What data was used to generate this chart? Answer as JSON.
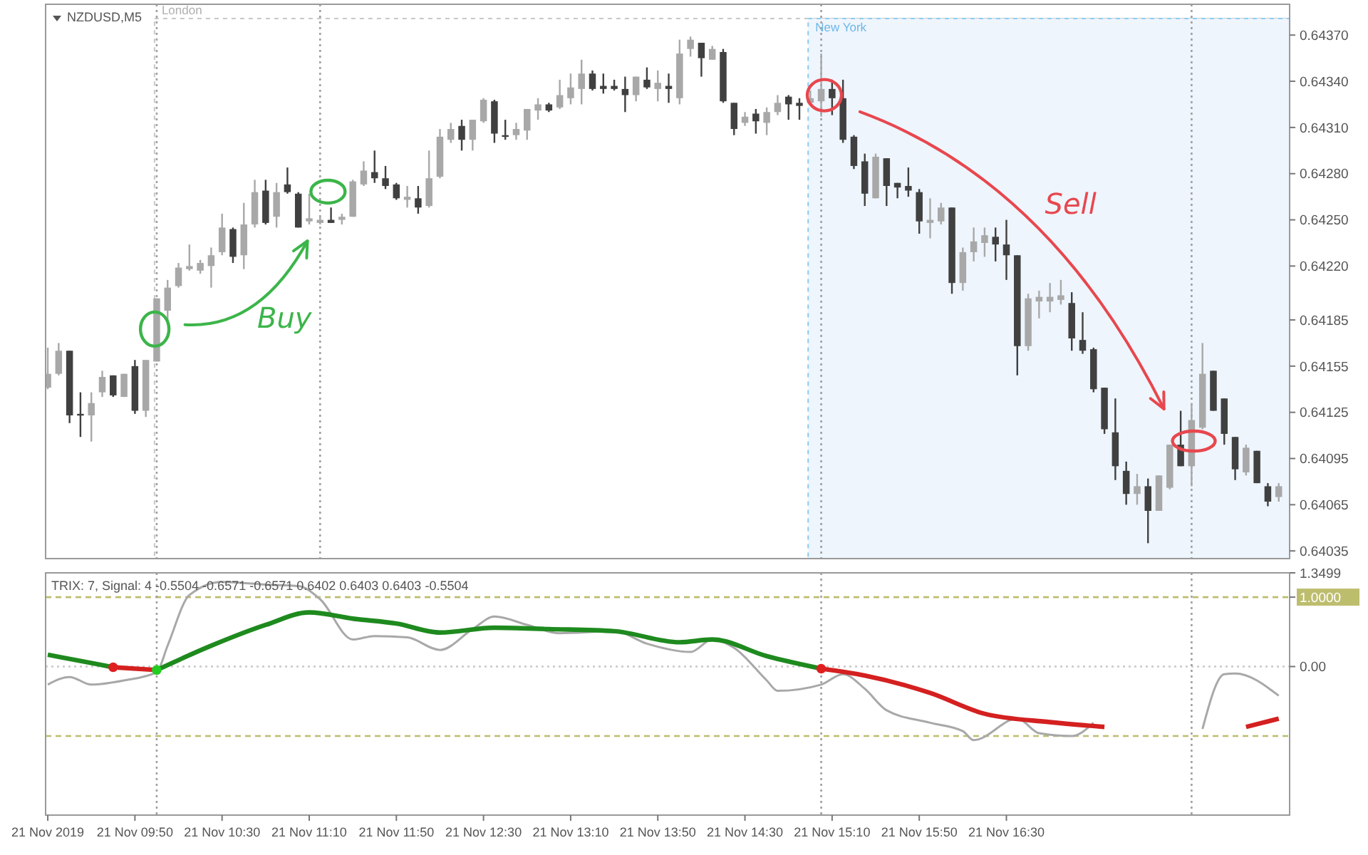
{
  "chart_data": [
    {
      "type": "candlestick",
      "title": "NZDUSD,M5",
      "tick_labels": "y",
      "x": [
        "2019-11-21T09:10",
        "2019-11-21T09:15",
        "2019-11-21T09:20",
        "2019-11-21T09:25",
        "2019-11-21T09:30",
        "2019-11-21T09:35",
        "2019-11-21T09:40",
        "2019-11-21T09:45",
        "2019-11-21T09:50",
        "2019-11-21T09:55",
        "2019-11-21T10:00",
        "2019-11-21T10:05",
        "2019-11-21T10:10",
        "2019-11-21T10:15",
        "2019-11-21T10:20",
        "2019-11-21T10:25",
        "2019-11-21T10:30",
        "2019-11-21T10:35",
        "2019-11-21T10:40",
        "2019-11-21T10:45",
        "2019-11-21T10:50",
        "2019-11-21T10:55",
        "2019-11-21T11:00",
        "2019-11-21T11:05",
        "2019-11-21T11:10",
        "2019-11-21T11:15",
        "2019-11-21T11:20",
        "2019-11-21T11:25",
        "2019-11-21T11:30",
        "2019-11-21T11:35",
        "2019-11-21T11:40",
        "2019-11-21T11:45",
        "2019-11-21T11:50",
        "2019-11-21T11:55",
        "2019-11-21T12:00",
        "2019-11-21T12:05",
        "2019-11-21T12:10",
        "2019-11-21T12:15",
        "2019-11-21T12:20",
        "2019-11-21T12:25",
        "2019-11-21T12:30",
        "2019-11-21T12:35",
        "2019-11-21T12:40",
        "2019-11-21T12:45",
        "2019-11-21T12:50",
        "2019-11-21T12:55",
        "2019-11-21T13:00",
        "2019-11-21T13:05",
        "2019-11-21T13:10",
        "2019-11-21T13:15",
        "2019-11-21T13:20",
        "2019-11-21T13:25",
        "2019-11-21T13:30",
        "2019-11-21T13:35",
        "2019-11-21T13:40",
        "2019-11-21T13:45",
        "2019-11-21T13:50",
        "2019-11-21T13:55",
        "2019-11-21T14:00",
        "2019-11-21T14:05",
        "2019-11-21T14:10",
        "2019-11-21T14:15",
        "2019-11-21T14:20",
        "2019-11-21T14:25",
        "2019-11-21T14:30",
        "2019-11-21T14:35",
        "2019-11-21T14:40",
        "2019-11-21T14:45",
        "2019-11-21T14:50",
        "2019-11-21T14:55",
        "2019-11-21T15:00",
        "2019-11-21T15:05",
        "2019-11-21T15:10",
        "2019-11-21T15:15",
        "2019-11-21T15:20",
        "2019-11-21T15:25",
        "2019-11-21T15:30",
        "2019-11-21T15:35",
        "2019-11-21T15:40",
        "2019-11-21T15:45",
        "2019-11-21T15:50",
        "2019-11-21T15:55",
        "2019-11-21T16:00",
        "2019-11-21T16:05",
        "2019-11-21T16:10",
        "2019-11-21T16:15",
        "2019-11-21T16:20",
        "2019-11-21T16:25",
        "2019-11-21T16:30",
        "2019-11-21T16:35",
        "2019-11-21T16:40",
        "2019-11-21T16:45",
        "2019-11-21T16:50",
        "2019-11-21T16:55",
        "2019-11-21T17:00",
        "2019-11-21T17:05",
        "2019-11-21T17:10",
        "2019-11-21T17:15",
        "2019-11-21T17:20",
        "2019-11-21T17:25",
        "2019-11-21T17:30",
        "2019-11-21T17:35",
        "2019-11-21T17:40",
        "2019-11-21T17:45",
        "2019-11-21T17:50",
        "2019-11-21T17:55",
        "2019-11-21T18:00",
        "2019-11-21T18:05",
        "2019-11-21T18:10",
        "2019-11-21T18:15",
        "2019-11-21T18:20",
        "2019-11-21T18:25",
        "2019-11-21T18:30",
        "2019-11-21T18:35"
      ],
      "ohlc": [
        [
          0.64141,
          0.64167,
          0.6414,
          0.6415
        ],
        [
          0.6415,
          0.6417,
          0.64149,
          0.64165
        ],
        [
          0.64165,
          0.64165,
          0.64118,
          0.64123
        ],
        [
          0.64124,
          0.64138,
          0.64109,
          0.64123
        ],
        [
          0.64123,
          0.64138,
          0.64106,
          0.64131
        ],
        [
          0.64138,
          0.64152,
          0.64135,
          0.64148
        ],
        [
          0.64149,
          0.64149,
          0.64135,
          0.64136
        ],
        [
          0.64135,
          0.6415,
          0.64135,
          0.6415
        ],
        [
          0.64155,
          0.64159,
          0.64124,
          0.64126
        ],
        [
          0.64126,
          0.64159,
          0.64122,
          0.64159
        ],
        [
          0.64158,
          0.64199,
          0.64158,
          0.64199
        ],
        [
          0.64191,
          0.64211,
          0.64184,
          0.64206
        ],
        [
          0.64207,
          0.64222,
          0.64206,
          0.64219
        ],
        [
          0.64218,
          0.64234,
          0.64217,
          0.6422
        ],
        [
          0.64217,
          0.64224,
          0.64215,
          0.64222
        ],
        [
          0.6422,
          0.64232,
          0.64206,
          0.64227
        ],
        [
          0.64229,
          0.64254,
          0.64227,
          0.64245
        ],
        [
          0.64244,
          0.64245,
          0.64222,
          0.64226
        ],
        [
          0.64227,
          0.64261,
          0.64218,
          0.64247
        ],
        [
          0.64247,
          0.64276,
          0.64245,
          0.64268
        ],
        [
          0.64269,
          0.64276,
          0.64247,
          0.64248
        ],
        [
          0.64252,
          0.64274,
          0.64245,
          0.64268
        ],
        [
          0.64273,
          0.64284,
          0.64267,
          0.64268
        ],
        [
          0.64267,
          0.64268,
          0.64245,
          0.64245
        ],
        [
          0.64249,
          0.64267,
          0.64247,
          0.64251
        ],
        [
          0.64248,
          0.64252,
          0.64247,
          0.6425
        ],
        [
          0.6425,
          0.64258,
          0.64248,
          0.64248
        ],
        [
          0.6425,
          0.64254,
          0.64247,
          0.64252
        ],
        [
          0.64252,
          0.64276,
          0.64252,
          0.64275
        ],
        [
          0.64273,
          0.64288,
          0.64272,
          0.64282
        ],
        [
          0.64281,
          0.64295,
          0.64274,
          0.64277
        ],
        [
          0.64277,
          0.64285,
          0.6427,
          0.64272
        ],
        [
          0.64273,
          0.64274,
          0.64263,
          0.64264
        ],
        [
          0.64263,
          0.64272,
          0.64258,
          0.64265
        ],
        [
          0.64264,
          0.64272,
          0.64254,
          0.64258
        ],
        [
          0.64259,
          0.64295,
          0.64258,
          0.64277
        ],
        [
          0.64278,
          0.64309,
          0.64277,
          0.64304
        ],
        [
          0.64302,
          0.64313,
          0.643,
          0.64309
        ],
        [
          0.64311,
          0.64315,
          0.64295,
          0.64302
        ],
        [
          0.64302,
          0.64315,
          0.64295,
          0.64315
        ],
        [
          0.64314,
          0.64329,
          0.64313,
          0.64328
        ],
        [
          0.64327,
          0.64328,
          0.643,
          0.64306
        ],
        [
          0.64305,
          0.64315,
          0.64302,
          0.64304
        ],
        [
          0.64305,
          0.64313,
          0.64302,
          0.64309
        ],
        [
          0.64308,
          0.64322,
          0.64302,
          0.64322
        ],
        [
          0.64321,
          0.64329,
          0.64315,
          0.64325
        ],
        [
          0.64325,
          0.64326,
          0.6432,
          0.64321
        ],
        [
          0.64323,
          0.64341,
          0.64322,
          0.64331
        ],
        [
          0.64329,
          0.64345,
          0.64325,
          0.64336
        ],
        [
          0.64335,
          0.64354,
          0.64325,
          0.64345
        ],
        [
          0.64345,
          0.64347,
          0.64334,
          0.64335
        ],
        [
          0.64337,
          0.64345,
          0.64332,
          0.64335
        ],
        [
          0.64337,
          0.64341,
          0.64334,
          0.64335
        ],
        [
          0.64335,
          0.64343,
          0.6432,
          0.64331
        ],
        [
          0.64331,
          0.64343,
          0.64327,
          0.64343
        ],
        [
          0.64341,
          0.64349,
          0.64335,
          0.64336
        ],
        [
          0.64335,
          0.64347,
          0.64327,
          0.64339
        ],
        [
          0.64337,
          0.64345,
          0.64326,
          0.64335
        ],
        [
          0.64329,
          0.64367,
          0.64325,
          0.64358
        ],
        [
          0.64361,
          0.64369,
          0.64356,
          0.64367
        ],
        [
          0.64365,
          0.64365,
          0.64343,
          0.64355
        ],
        [
          0.64354,
          0.64363,
          0.64354,
          0.64361
        ],
        [
          0.64359,
          0.64361,
          0.64326,
          0.64327
        ],
        [
          0.64326,
          0.64326,
          0.64305,
          0.64309
        ],
        [
          0.64313,
          0.6432,
          0.64311,
          0.64317
        ],
        [
          0.64319,
          0.64322,
          0.64306,
          0.64314
        ],
        [
          0.64313,
          0.64323,
          0.64305,
          0.6432
        ],
        [
          0.6432,
          0.64331,
          0.64318,
          0.64326
        ],
        [
          0.6433,
          0.64331,
          0.64315,
          0.64325
        ],
        [
          0.64326,
          0.64329,
          0.64315,
          0.64324
        ],
        [
          0.64326,
          0.64334,
          0.64325,
          0.64329
        ],
        [
          0.64327,
          0.64358,
          0.64317,
          0.64335
        ],
        [
          0.64335,
          0.64341,
          0.64318,
          0.64329
        ],
        [
          0.64329,
          0.64341,
          0.643,
          0.64302
        ],
        [
          0.64304,
          0.64305,
          0.64283,
          0.64285
        ],
        [
          0.64288,
          0.64293,
          0.64259,
          0.64267
        ],
        [
          0.64264,
          0.64293,
          0.64264,
          0.64291
        ],
        [
          0.6429,
          0.6429,
          0.64259,
          0.64272
        ],
        [
          0.64274,
          0.64274,
          0.64264,
          0.64271
        ],
        [
          0.64272,
          0.64284,
          0.64265,
          0.64269
        ],
        [
          0.64268,
          0.6427,
          0.64241,
          0.64249
        ],
        [
          0.64248,
          0.64264,
          0.64238,
          0.6425
        ],
        [
          0.64249,
          0.64261,
          0.64247,
          0.64258
        ],
        [
          0.64258,
          0.64258,
          0.64202,
          0.64209
        ],
        [
          0.64209,
          0.64232,
          0.64204,
          0.64229
        ],
        [
          0.64229,
          0.64245,
          0.64223,
          0.64236
        ],
        [
          0.64235,
          0.64245,
          0.64226,
          0.6424
        ],
        [
          0.64239,
          0.64245,
          0.64223,
          0.64234
        ],
        [
          0.64234,
          0.6425,
          0.64211,
          0.64227
        ],
        [
          0.64227,
          0.64227,
          0.64149,
          0.64168
        ],
        [
          0.64168,
          0.64202,
          0.64165,
          0.64199
        ],
        [
          0.64197,
          0.64204,
          0.64186,
          0.642
        ],
        [
          0.64197,
          0.64209,
          0.6419,
          0.642
        ],
        [
          0.64198,
          0.64211,
          0.64195,
          0.64201
        ],
        [
          0.64196,
          0.64203,
          0.64165,
          0.64173
        ],
        [
          0.64172,
          0.6419,
          0.64163,
          0.64165
        ],
        [
          0.64166,
          0.64167,
          0.64138,
          0.6414
        ],
        [
          0.64141,
          0.64141,
          0.64111,
          0.64114
        ],
        [
          0.64112,
          0.64134,
          0.64081,
          0.6409
        ],
        [
          0.64087,
          0.64093,
          0.64065,
          0.64072
        ],
        [
          0.64072,
          0.64085,
          0.64065,
          0.64077
        ],
        [
          0.64077,
          0.64082,
          0.6404,
          0.64061
        ],
        [
          0.64061,
          0.64084,
          0.64061,
          0.64084
        ],
        [
          0.64076,
          0.64104,
          0.64075,
          0.64104
        ],
        [
          0.64104,
          0.64126,
          0.6409,
          0.6409
        ],
        [
          0.6409,
          0.64131,
          0.64077,
          0.6412
        ],
        [
          0.64115,
          0.6417,
          0.64114,
          0.6415
        ],
        [
          0.64152,
          0.64152,
          0.64126,
          0.64126
        ],
        [
          0.64134,
          0.64134,
          0.64104,
          0.64111
        ],
        [
          0.64109,
          0.64109,
          0.64081,
          0.64088
        ],
        [
          0.64086,
          0.64104,
          0.64084,
          0.64102
        ],
        [
          0.641,
          0.641,
          0.64079,
          0.64079
        ],
        [
          0.64077,
          0.64079,
          0.64064,
          0.64067
        ],
        [
          0.6407,
          0.64079,
          0.64067,
          0.64077
        ]
      ],
      "colors": [
        "#a8a8a8",
        "#a8a8a8",
        "#404040",
        "#404040",
        "#a8a8a8",
        "#a8a8a8",
        "#404040",
        "#a8a8a8",
        "#404040",
        "#a8a8a8",
        "#a8a8a8",
        "#a8a8a8",
        "#a8a8a8",
        "#a8a8a8",
        "#a8a8a8",
        "#a8a8a8",
        "#a8a8a8",
        "#404040",
        "#a8a8a8",
        "#a8a8a8",
        "#404040",
        "#a8a8a8",
        "#404040",
        "#404040",
        "#a8a8a8",
        "#a8a8a8",
        "#404040",
        "#a8a8a8",
        "#a8a8a8",
        "#a8a8a8",
        "#404040",
        "#404040",
        "#404040",
        "#a8a8a8",
        "#404040",
        "#a8a8a8",
        "#a8a8a8",
        "#a8a8a8",
        "#404040",
        "#a8a8a8",
        "#a8a8a8",
        "#404040",
        "#404040",
        "#a8a8a8",
        "#a8a8a8",
        "#a8a8a8",
        "#404040",
        "#a8a8a8",
        "#a8a8a8",
        "#a8a8a8",
        "#404040",
        "#404040",
        "#404040",
        "#404040",
        "#a8a8a8",
        "#404040",
        "#a8a8a8",
        "#404040",
        "#a8a8a8",
        "#a8a8a8",
        "#404040",
        "#a8a8a8",
        "#404040",
        "#404040",
        "#a8a8a8",
        "#404040",
        "#a8a8a8",
        "#a8a8a8",
        "#404040",
        "#404040",
        "#a8a8a8",
        "#a8a8a8",
        "#404040",
        "#404040",
        "#404040",
        "#404040",
        "#a8a8a8",
        "#404040",
        "#404040",
        "#404040",
        "#404040",
        "#a8a8a8",
        "#a8a8a8",
        "#404040",
        "#a8a8a8",
        "#a8a8a8",
        "#a8a8a8",
        "#404040",
        "#404040",
        "#404040",
        "#a8a8a8",
        "#a8a8a8",
        "#a8a8a8",
        "#a8a8a8",
        "#404040",
        "#404040",
        "#404040",
        "#404040",
        "#404040",
        "#404040",
        "#a8a8a8",
        "#404040",
        "#a8a8a8",
        "#a8a8a8",
        "#404040",
        "#a8a8a8",
        "#a8a8a8",
        "#404040",
        "#404040",
        "#404040",
        "#a8a8a8",
        "#404040",
        "#404040",
        "#a8a8a8"
      ],
      "xlim": [
        "2019-11-21T09:09",
        "2019-11-21T18:40"
      ],
      "ylim": [
        0.6403,
        0.6439
      ],
      "yticks": [
        {
          "value": 0.6437,
          "label": "0.64370"
        },
        {
          "value": 0.6434,
          "label": "0.64340"
        },
        {
          "value": 0.6431,
          "label": "0.64310"
        },
        {
          "value": 0.6428,
          "label": "0.64280"
        },
        {
          "value": 0.6425,
          "label": "0.64250"
        },
        {
          "value": 0.6422,
          "label": "0.64220"
        },
        {
          "value": 0.64185,
          "label": "0.64185"
        },
        {
          "value": 0.64155,
          "label": "0.64155"
        },
        {
          "value": 0.64125,
          "label": "0.64125"
        },
        {
          "value": 0.64095,
          "label": "0.64095"
        },
        {
          "value": 0.64065,
          "label": "0.64065"
        },
        {
          "value": 0.64035,
          "label": "0.64035"
        }
      ],
      "bands": [
        {
          "axis": "x",
          "from": "2019-11-21T09:59",
          "to": "2019-11-21T18:40",
          "label": "London",
          "color": "#ffffff"
        },
        {
          "axis": "x",
          "from": "2019-11-21T14:59",
          "to": "2019-11-21T18:40",
          "label": "New York",
          "color": "#eef5fd"
        }
      ],
      "ref_lines": [
        {
          "axis": "x",
          "value": "2019-11-21T10:00",
          "color": "#a0a0a0",
          "line_style": "dotted"
        },
        {
          "axis": "x",
          "value": "2019-11-21T11:15",
          "color": "#a0a0a0",
          "line_style": "dotted"
        },
        {
          "axis": "x",
          "value": "2019-11-21T15:05",
          "color": "#a0a0a0",
          "line_style": "dotted"
        },
        {
          "axis": "x",
          "value": "2019-11-21T17:55",
          "color": "#a0a0a0",
          "line_style": "dotted"
        }
      ],
      "annotations": [
        "Buy",
        "Sell"
      ]
    },
    {
      "type": "line",
      "title": "TRIX: 7, Signal: 4 -0.5504 -0.6571 -0.6571 0.6402 0.6403 0.6403 -0.5504",
      "xlim": [
        "2019-11-21T09:09",
        "2019-11-21T18:40"
      ],
      "xticks": [
        {
          "value": "2019-11-21T09:10",
          "label": "21 Nov 2019"
        },
        {
          "value": "2019-11-21T09:50",
          "label": "21 Nov 09:50"
        },
        {
          "value": "2019-11-21T10:30",
          "label": "21 Nov 10:30"
        },
        {
          "value": "2019-11-21T11:10",
          "label": "21 Nov 11:10"
        },
        {
          "value": "2019-11-21T11:50",
          "label": "21 Nov 11:50"
        },
        {
          "value": "2019-11-21T12:30",
          "label": "21 Nov 12:30"
        },
        {
          "value": "2019-11-21T13:10",
          "label": "21 Nov 13:10"
        },
        {
          "value": "2019-11-21T13:50",
          "label": "21 Nov 13:50"
        },
        {
          "value": "2019-11-21T14:30",
          "label": "21 Nov 14:30"
        },
        {
          "value": "2019-11-21T15:10",
          "label": "21 Nov 15:10"
        },
        {
          "value": "2019-11-21T15:50",
          "label": "21 Nov 15:50"
        },
        {
          "value": "2019-11-21T16:30",
          "label": "21 Nov 16:30"
        }
      ],
      "ylim": [
        -2.14,
        1.3499
      ],
      "yticks": [
        1.3499,
        {
          "value": 1,
          "label": "1.0000"
        },
        {
          "value": 0,
          "label": "0.00"
        }
      ],
      "ref_lines": [
        {
          "axis": "y",
          "value": 1,
          "color": "#bdbd6e",
          "line_style": "dashed"
        },
        {
          "axis": "y",
          "value": 0,
          "color": "#c8c8c8",
          "line_style": "dotted"
        },
        {
          "axis": "y",
          "value": -1,
          "color": "#bdbd6e",
          "line_style": "dashed"
        },
        {
          "axis": "x",
          "value": "2019-11-21T10:00",
          "color": "#a0a0a0",
          "line_style": "dotted"
        },
        {
          "axis": "x",
          "value": "2019-11-21T15:05",
          "color": "#a0a0a0",
          "line_style": "dotted"
        },
        {
          "axis": "x",
          "value": "2019-11-21T17:55",
          "color": "#a0a0a0",
          "line_style": "dotted"
        }
      ],
      "series": [
        {
          "type": "line",
          "color": "#a8a8a8",
          "x": [
            "2019-11-21T09:10",
            "2019-11-21T09:20",
            "2019-11-21T09:30",
            "2019-11-21T09:45",
            "2019-11-21T10:00",
            "2019-11-21T10:05",
            "2019-11-21T10:15",
            "2019-11-21T10:30",
            "2019-11-21T10:50",
            "2019-11-21T11:05",
            "2019-11-21T11:15",
            "2019-11-21T11:30",
            "2019-11-21T11:40",
            "2019-11-21T11:55",
            "2019-11-21T12:10",
            "2019-11-21T12:25",
            "2019-11-21T12:35",
            "2019-11-21T12:50",
            "2019-11-21T13:05",
            "2019-11-21T13:30",
            "2019-11-21T13:45",
            "2019-11-21T14:05",
            "2019-11-21T14:15",
            "2019-11-21T14:25",
            "2019-11-21T14:40",
            "2019-11-21T14:45",
            "2019-11-21T15:05",
            "2019-11-21T15:15",
            "2019-11-21T15:25",
            "2019-11-21T15:35",
            "2019-11-21T15:55",
            "2019-11-21T16:10",
            "2019-11-21T16:15",
            "2019-11-21T16:35",
            "2019-11-21T16:45",
            "2019-11-21T17:00",
            "2019-11-21T17:10",
            "2019-11-21T17:20",
            "2019-11-21T18:00",
            "2019-11-21T18:10",
            "2019-11-21T18:15",
            "2019-11-21T18:35"
          ],
          "values": [
            -0.26,
            -0.15,
            -0.26,
            -0.2,
            -0.08,
            0.3,
            1.03,
            1.22,
            1.18,
            1.16,
            0.97,
            0.39,
            0.44,
            0.42,
            0.24,
            0.54,
            0.72,
            0.6,
            0.48,
            0.51,
            0.33,
            0.21,
            0.39,
            0.27,
            -0.2,
            -0.35,
            -0.26,
            -0.11,
            -0.32,
            -0.63,
            -0.81,
            -0.93,
            -1.06,
            -0.75,
            -0.96,
            -1.0,
            -0.81,
            null,
            -0.9,
            -0.11,
            -0.1,
            -0.42
          ]
        },
        {
          "type": "line",
          "color": "#1e8a1e",
          "x": [
            "2019-11-21T09:10",
            "2019-11-21T09:25",
            "2019-11-21T09:40",
            "2019-11-21T09:50",
            "2019-11-21T10:00",
            "2019-11-21T10:25",
            "2019-11-21T10:50",
            "2019-11-21T11:10",
            "2019-11-21T11:30",
            "2019-11-21T11:50",
            "2019-11-21T12:10",
            "2019-11-21T12:35",
            "2019-11-21T13:00",
            "2019-11-21T13:30",
            "2019-11-21T14:00",
            "2019-11-21T14:15",
            "2019-11-21T14:40",
            "2019-11-21T15:05"
          ],
          "values": [
            0.17,
            0.08,
            -0.01,
            null,
            -0.05,
            0.3,
            0.6,
            0.78,
            0.69,
            0.62,
            0.49,
            0.56,
            0.54,
            0.51,
            0.35,
            0.39,
            0.15,
            -0.03
          ]
        },
        {
          "type": "line",
          "color": "#d42020",
          "x": [
            "2019-11-21T09:40",
            "2019-11-21T10:00",
            "2019-11-21T12:00",
            "2019-11-21T15:05",
            "2019-11-21T15:25",
            "2019-11-21T15:55",
            "2019-11-21T16:20",
            "2019-11-21T16:50",
            "2019-11-21T17:15",
            "2019-11-21T17:20",
            "2019-11-21T18:20",
            "2019-11-21T18:35"
          ],
          "values": [
            -0.01,
            -0.05,
            null,
            -0.03,
            -0.13,
            -0.38,
            -0.68,
            -0.8,
            -0.87,
            null,
            -0.87,
            -0.75
          ]
        },
        {
          "type": "scatter",
          "marker": "circle",
          "x": [
            "2019-11-21T09:40",
            "2019-11-21T10:00",
            "2019-11-21T15:05"
          ],
          "values": [
            -0.01,
            -0.05,
            -0.03
          ],
          "colors": [
            "#e02020",
            "#22cc22",
            "#e02020"
          ]
        }
      ]
    }
  ]
}
